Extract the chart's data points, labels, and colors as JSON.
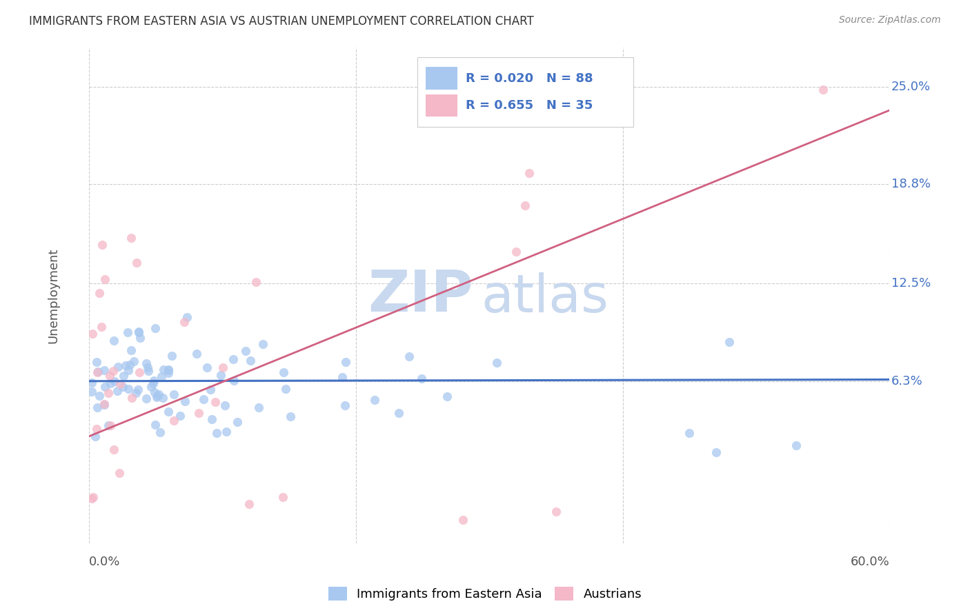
{
  "title": "IMMIGRANTS FROM EASTERN ASIA VS AUSTRIAN UNEMPLOYMENT CORRELATION CHART",
  "source": "Source: ZipAtlas.com",
  "ylabel": "Unemployment",
  "ytick_vals": [
    0.063,
    0.125,
    0.188,
    0.25
  ],
  "ytick_labels": [
    "6.3%",
    "12.5%",
    "18.8%",
    "25.0%"
  ],
  "xlim": [
    0.0,
    0.6
  ],
  "ylim": [
    -0.04,
    0.275
  ],
  "blue_fill": "#a8c8f0",
  "blue_edge": "#5b9bd5",
  "pink_fill": "#f4b8c8",
  "pink_edge": "#e06080",
  "blue_line_color": "#4472c4",
  "pink_line_color": "#d06080",
  "legend_text_color": "#4472c4",
  "title_color": "#333333",
  "source_color": "#888888",
  "watermark1": "ZIP",
  "watermark2": "atlas",
  "watermark_color": "#c8d8ee",
  "grid_color": "#cccccc",
  "R_blue": 0.02,
  "N_blue": 88,
  "R_pink": 0.655,
  "N_pink": 35,
  "pink_line_x0": 0.0,
  "pink_line_y0": 0.028,
  "pink_line_x1": 0.6,
  "pink_line_y1": 0.235,
  "blue_line_x0": 0.0,
  "blue_line_y0": 0.063,
  "blue_line_x1": 0.6,
  "blue_line_y1": 0.064
}
